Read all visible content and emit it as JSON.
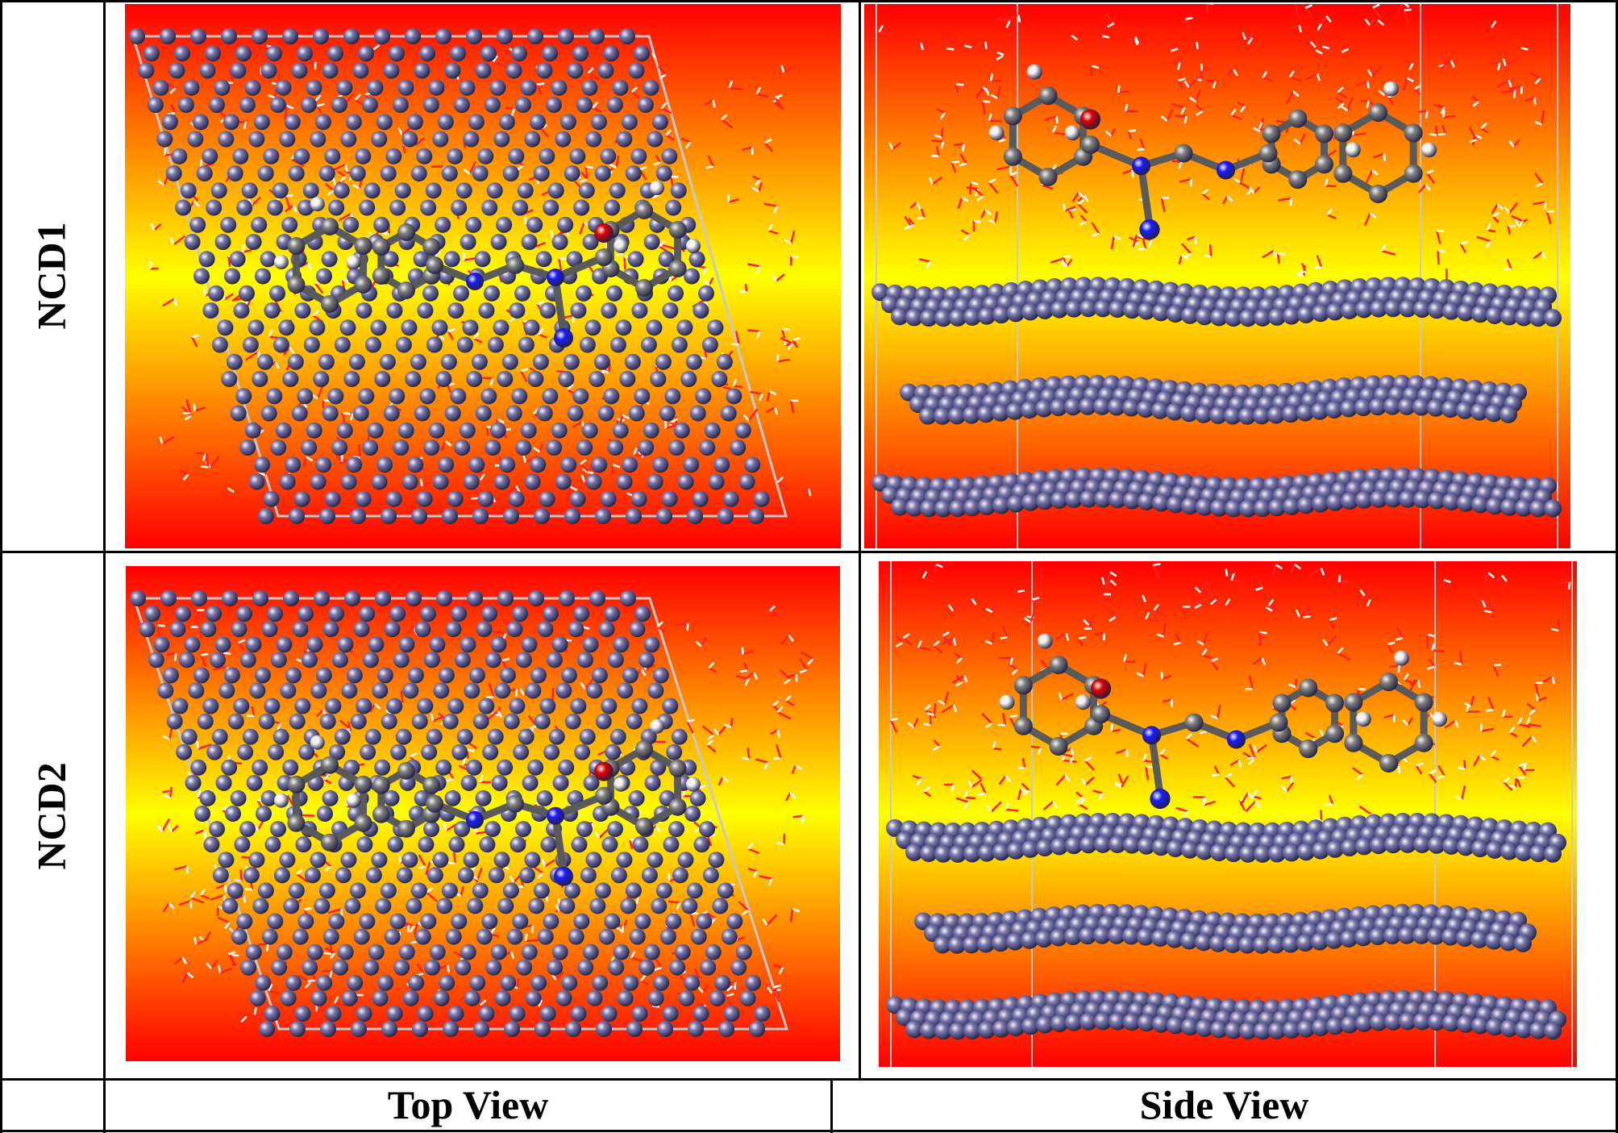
{
  "rows": [
    {
      "label": "NCD1"
    },
    {
      "label": "NCD2"
    }
  ],
  "columns": [
    {
      "label": "Top View"
    },
    {
      "label": "Side View"
    }
  ],
  "colors": {
    "background_top": "#ff0000",
    "background_mid": "#ffff00",
    "metal_atom": "#7878b0",
    "carbon_atom": "#808080",
    "nitrogen_atom": "#1a1aff",
    "oxygen_atom": "#e00000",
    "hydrogen_atom": "#ffffff",
    "water_red": "#ff2020",
    "water_white": "#ffffff",
    "cell_border": "#c8c8c8"
  }
}
